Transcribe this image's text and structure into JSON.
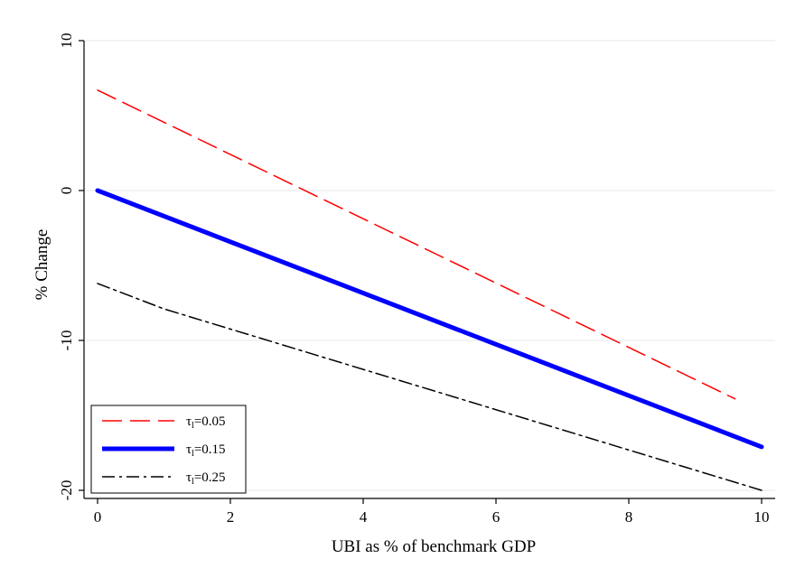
{
  "chart_data": {
    "type": "line",
    "title": "",
    "xlabel": "UBI as % of benchmark GDP",
    "ylabel": "% Change",
    "xlim": [
      0,
      10
    ],
    "ylim": [
      -20,
      10
    ],
    "xticks": [
      0,
      2,
      4,
      6,
      8,
      10
    ],
    "yticks": [
      -20,
      -10,
      0,
      10
    ],
    "xtick_labels": [
      "0",
      "2",
      "4",
      "6",
      "8",
      "10"
    ],
    "ytick_labels": [
      "-20",
      "-10",
      "0",
      "10"
    ],
    "grid": "horizontal",
    "legend_position": "bottom-left",
    "series": [
      {
        "name": "τ",
        "name_subscript": "l",
        "name_suffix": "=0.05",
        "color": "#ff0000",
        "style": "dashed",
        "x": [
          0,
          9.6
        ],
        "y": [
          6.7,
          -13.9
        ]
      },
      {
        "name": "τ",
        "name_subscript": "l",
        "name_suffix": "=0.15",
        "color": "#0000ff",
        "style": "solid-thick",
        "x": [
          0,
          10
        ],
        "y": [
          0,
          -17.1
        ]
      },
      {
        "name": "τ",
        "name_subscript": "l",
        "name_suffix": "=0.25",
        "color": "#000000",
        "style": "dashdot",
        "x": [
          0,
          1,
          10
        ],
        "y": [
          -6.2,
          -7.9,
          -20.0
        ]
      }
    ]
  }
}
